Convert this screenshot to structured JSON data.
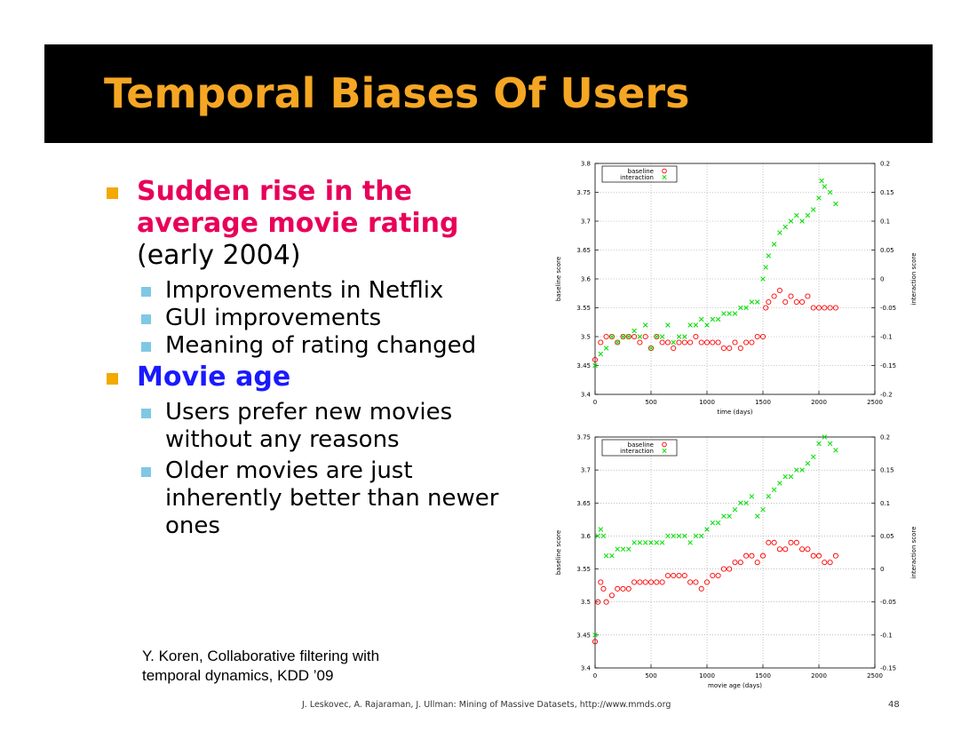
{
  "slide": {
    "title": "Temporal Biases Of Users",
    "footer": "J. Leskovec, A. Rajaraman, J. Ullman: Mining of Massive Datasets, http://www.mmds.org",
    "page_number": "48",
    "reference": "Y. Koren, Collaborative filtering with\ntemporal dynamics, KDD ’09",
    "colors": {
      "title": "#f5a623",
      "highlight_pink": "#e8005a",
      "highlight_blue": "#1a1aff",
      "baseline": "#ff0000",
      "interaction": "#00dd00"
    }
  },
  "bullets": [
    {
      "highlight": "Sudden rise in the average movie rating",
      "rest": " (early 2004)",
      "color": "#e8005a",
      "sub": [
        "Improvements in Netflix",
        "GUI improvements",
        "Meaning of rating changed"
      ]
    },
    {
      "highlight": "Movie age",
      "rest": "",
      "color": "#1a1aff",
      "sub": [
        "Users prefer new movies without any reasons",
        "Older movies are just inherently better than newer ones"
      ]
    }
  ],
  "chart_data": [
    {
      "type": "scatter",
      "xlabel": "time (days)",
      "ylabel": "baseline score",
      "y2label": "interaction score",
      "xlim": [
        0,
        2500
      ],
      "ylim": [
        3.4,
        3.8
      ],
      "y2lim": [
        -0.2,
        0.2
      ],
      "xticks": [
        0,
        500,
        1000,
        1500,
        2000,
        2500
      ],
      "yticks": [
        3.4,
        3.45,
        3.5,
        3.55,
        3.6,
        3.65,
        3.7,
        3.75,
        3.8
      ],
      "y2ticks": [
        -0.2,
        -0.15,
        -0.1,
        -0.05,
        0,
        0.05,
        0.1,
        0.15,
        0.2
      ],
      "grid": true,
      "legend": "top-left",
      "series": [
        {
          "name": "baseline",
          "axis": "left",
          "marker": "circle",
          "x": [
            0,
            50,
            100,
            150,
            200,
            250,
            300,
            350,
            400,
            450,
            500,
            550,
            600,
            650,
            700,
            750,
            800,
            850,
            900,
            950,
            1000,
            1050,
            1100,
            1150,
            1200,
            1250,
            1300,
            1350,
            1400,
            1450,
            1500,
            1525,
            1550,
            1600,
            1650,
            1700,
            1750,
            1800,
            1850,
            1900,
            1950,
            2000,
            2050,
            2100,
            2150
          ],
          "y": [
            3.46,
            3.49,
            3.5,
            3.5,
            3.49,
            3.5,
            3.5,
            3.5,
            3.49,
            3.5,
            3.48,
            3.5,
            3.49,
            3.49,
            3.48,
            3.49,
            3.49,
            3.49,
            3.5,
            3.49,
            3.49,
            3.49,
            3.49,
            3.48,
            3.48,
            3.49,
            3.48,
            3.49,
            3.49,
            3.5,
            3.5,
            3.55,
            3.56,
            3.57,
            3.58,
            3.56,
            3.57,
            3.56,
            3.56,
            3.57,
            3.55,
            3.55,
            3.55,
            3.55,
            3.55
          ]
        },
        {
          "name": "interaction",
          "axis": "right",
          "marker": "cross",
          "x": [
            0,
            50,
            100,
            150,
            200,
            250,
            300,
            350,
            400,
            450,
            500,
            550,
            600,
            650,
            700,
            750,
            800,
            850,
            900,
            950,
            1000,
            1050,
            1100,
            1150,
            1200,
            1250,
            1300,
            1350,
            1400,
            1450,
            1500,
            1525,
            1550,
            1600,
            1650,
            1700,
            1750,
            1800,
            1850,
            1900,
            1950,
            2000,
            2025,
            2050,
            2100,
            2150
          ],
          "y": [
            -0.15,
            -0.13,
            -0.12,
            -0.1,
            -0.11,
            -0.1,
            -0.1,
            -0.09,
            -0.1,
            -0.08,
            -0.12,
            -0.1,
            -0.1,
            -0.08,
            -0.11,
            -0.1,
            -0.1,
            -0.08,
            -0.08,
            -0.07,
            -0.08,
            -0.07,
            -0.07,
            -0.06,
            -0.06,
            -0.06,
            -0.05,
            -0.05,
            -0.04,
            -0.04,
            0.0,
            0.02,
            0.04,
            0.06,
            0.08,
            0.09,
            0.1,
            0.11,
            0.1,
            0.11,
            0.12,
            0.14,
            0.17,
            0.16,
            0.15,
            0.13
          ]
        }
      ]
    },
    {
      "type": "scatter",
      "xlabel": "movie age (days)",
      "ylabel": "baseline score",
      "y2label": "interaction score",
      "xlim": [
        0,
        2500
      ],
      "ylim": [
        3.4,
        3.75
      ],
      "y2lim": [
        -0.15,
        0.2
      ],
      "xticks": [
        0,
        500,
        1000,
        1500,
        2000,
        2500
      ],
      "yticks": [
        3.4,
        3.45,
        3.5,
        3.55,
        3.6,
        3.65,
        3.7,
        3.75
      ],
      "y2ticks": [
        -0.15,
        -0.1,
        -0.05,
        0,
        0.05,
        0.1,
        0.15,
        0.2
      ],
      "grid": true,
      "legend": "top-left",
      "series": [
        {
          "name": "baseline",
          "axis": "left",
          "marker": "circle",
          "x": [
            0,
            25,
            50,
            75,
            100,
            150,
            200,
            250,
            300,
            350,
            400,
            450,
            500,
            550,
            600,
            650,
            700,
            750,
            800,
            850,
            900,
            950,
            1000,
            1050,
            1100,
            1150,
            1200,
            1250,
            1300,
            1350,
            1400,
            1450,
            1500,
            1550,
            1600,
            1650,
            1700,
            1750,
            1800,
            1850,
            1900,
            1950,
            2000,
            2050,
            2100,
            2150
          ],
          "y": [
            3.44,
            3.5,
            3.53,
            3.52,
            3.5,
            3.51,
            3.52,
            3.52,
            3.52,
            3.53,
            3.53,
            3.53,
            3.53,
            3.53,
            3.53,
            3.54,
            3.54,
            3.54,
            3.54,
            3.53,
            3.53,
            3.52,
            3.53,
            3.54,
            3.54,
            3.55,
            3.55,
            3.56,
            3.56,
            3.57,
            3.57,
            3.56,
            3.57,
            3.59,
            3.59,
            3.58,
            3.58,
            3.59,
            3.59,
            3.58,
            3.58,
            3.57,
            3.57,
            3.56,
            3.56,
            3.57
          ]
        },
        {
          "name": "interaction",
          "axis": "right",
          "marker": "cross",
          "x": [
            0,
            25,
            50,
            75,
            100,
            150,
            200,
            250,
            300,
            350,
            400,
            450,
            500,
            550,
            600,
            650,
            700,
            750,
            800,
            850,
            900,
            950,
            1000,
            1050,
            1100,
            1150,
            1200,
            1250,
            1300,
            1350,
            1400,
            1450,
            1500,
            1550,
            1600,
            1650,
            1700,
            1750,
            1800,
            1850,
            1900,
            1950,
            2000,
            2050,
            2100,
            2150
          ],
          "y": [
            -0.1,
            0.05,
            0.06,
            0.05,
            0.02,
            0.02,
            0.03,
            0.03,
            0.03,
            0.04,
            0.04,
            0.04,
            0.04,
            0.04,
            0.04,
            0.05,
            0.05,
            0.05,
            0.05,
            0.04,
            0.05,
            0.05,
            0.06,
            0.07,
            0.07,
            0.08,
            0.08,
            0.09,
            0.1,
            0.1,
            0.11,
            0.08,
            0.09,
            0.11,
            0.12,
            0.13,
            0.14,
            0.14,
            0.15,
            0.15,
            0.16,
            0.17,
            0.19,
            0.2,
            0.19,
            0.18
          ]
        }
      ]
    }
  ]
}
